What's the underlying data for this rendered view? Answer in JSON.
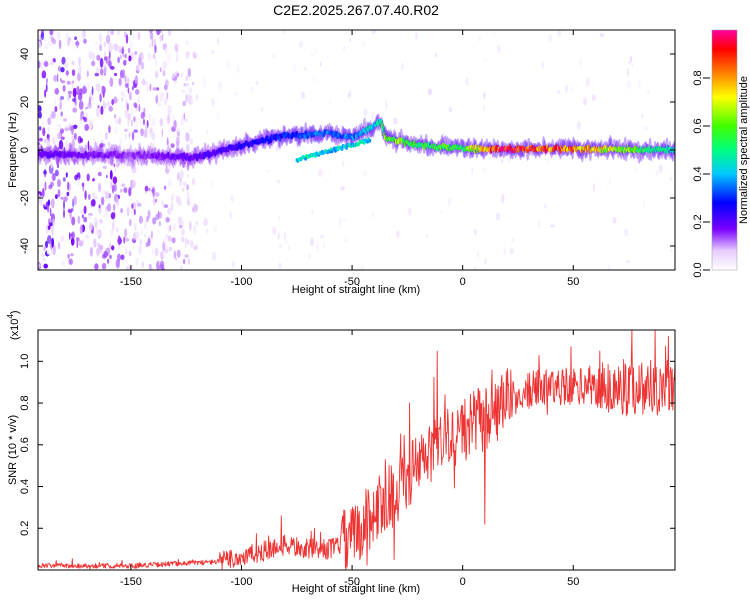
{
  "title": "C2E2.2025.267.07.40.R02",
  "chart_data": [
    {
      "type": "heatmap",
      "name": "spectrogram",
      "xlabel": "Height of straight line (km)",
      "ylabel": "Frequency (Hz)",
      "xlim": [
        -192,
        96
      ],
      "ylim": [
        -50,
        50
      ],
      "xticks": [
        -150,
        -100,
        -50,
        0,
        50
      ],
      "yticks": [
        -40,
        -20,
        0,
        20,
        40
      ],
      "colorbar": {
        "label": "Normalized spectral amplitude",
        "range": [
          0,
          1
        ],
        "ticks": [
          0.0,
          0.2,
          0.4,
          0.6,
          0.8
        ]
      },
      "ridge": {
        "x": [
          -192,
          -150,
          -120,
          -100,
          -80,
          -60,
          -50,
          -40,
          -37,
          -35,
          -20,
          0,
          20,
          50,
          96
        ],
        "freq": [
          -2,
          -2,
          -3,
          2,
          6,
          7,
          5,
          10,
          12,
          5,
          2,
          0.5,
          0.5,
          0.5,
          0
        ],
        "amplitude": [
          0.2,
          0.15,
          0.2,
          0.25,
          0.3,
          0.35,
          0.35,
          0.45,
          0.45,
          0.65,
          0.55,
          0.55,
          0.95,
          0.8,
          0.45
        ]
      },
      "noise_region_x": [
        -192,
        -120
      ]
    },
    {
      "type": "line",
      "name": "snr",
      "xlabel": "Height of straight line (km)",
      "ylabel": "SNR (10 * v/v)",
      "scale_label": "(x10",
      "scale_exponent": "4",
      "scale_close": ")",
      "xlim": [
        -192,
        96
      ],
      "ylim": [
        0,
        1.15
      ],
      "xticks": [
        -150,
        -100,
        -50,
        0,
        50
      ],
      "yticks": [
        0.2,
        0.4,
        0.6,
        0.8,
        1.0
      ],
      "color": "#ee3333",
      "envelope": {
        "x": [
          -192,
          -150,
          -130,
          -110,
          -100,
          -90,
          -80,
          -70,
          -60,
          -50,
          -45,
          -40,
          -35,
          -30,
          -25,
          -20,
          -15,
          -10,
          -5,
          0,
          5,
          10,
          15,
          20,
          30,
          40,
          50,
          60,
          70,
          80,
          96
        ],
        "y": [
          0.02,
          0.02,
          0.03,
          0.04,
          0.06,
          0.09,
          0.12,
          0.1,
          0.1,
          0.15,
          0.22,
          0.28,
          0.33,
          0.38,
          0.45,
          0.5,
          0.55,
          0.6,
          0.63,
          0.67,
          0.7,
          0.72,
          0.76,
          0.8,
          0.86,
          0.88,
          0.88,
          0.88,
          0.87,
          0.88,
          0.88
        ]
      },
      "peaks": [
        {
          "x": -82,
          "y": 0.26
        },
        {
          "x": -67,
          "y": 0.2
        },
        {
          "x": -35,
          "y": 0.53
        },
        {
          "x": -24,
          "y": 0.8
        },
        {
          "x": -8,
          "y": 0.84
        },
        {
          "x": 7,
          "y": 0.87
        },
        {
          "x": 49,
          "y": 1.07
        },
        {
          "x": 62,
          "y": 1.05
        },
        {
          "x": 87,
          "y": 1.15
        },
        {
          "x": 93,
          "y": 1.12
        }
      ],
      "dips": [
        {
          "x": 10,
          "y": 0.22
        },
        {
          "x": -31,
          "y": 0.05
        }
      ]
    }
  ],
  "colors": {
    "line": "#ee3333",
    "frame": "#000000"
  }
}
